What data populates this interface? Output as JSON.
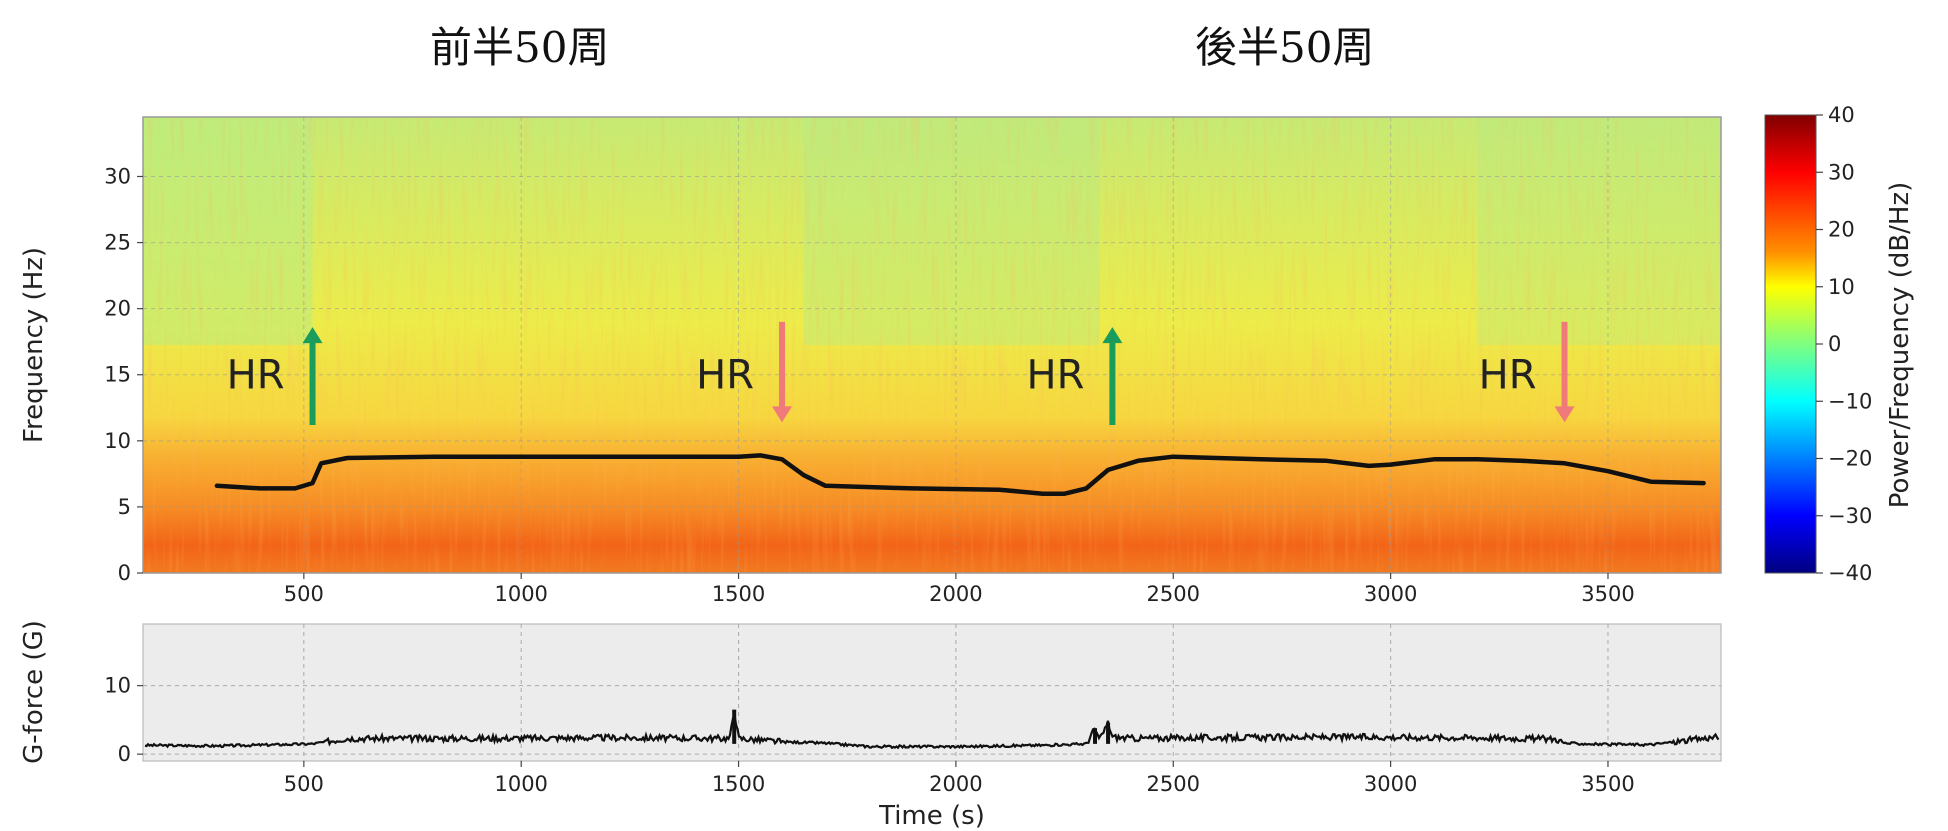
{
  "titles": {
    "left": "前半50周",
    "right": "後半50周"
  },
  "colors": {
    "hr_up": "#1a9c5a",
    "hr_down": "#f07a7a",
    "trace": "#111111",
    "lower_bg": "#ececec"
  },
  "chart_data": [
    {
      "type": "heatmap",
      "title": "",
      "xlabel": "",
      "ylabel": "Frequency (Hz)",
      "xlim": [
        130,
        3760
      ],
      "ylim": [
        0,
        34.5
      ],
      "xticks": [
        500,
        1000,
        1500,
        2000,
        2500,
        3000,
        3500
      ],
      "yticks": [
        0,
        5,
        10,
        15,
        20,
        25,
        30
      ],
      "colorbar": {
        "label": "Power/Frequency (dB/Hz)",
        "range": [
          -40,
          40
        ],
        "ticks": [
          40,
          30,
          20,
          10,
          0,
          -10,
          -20,
          -30,
          -40
        ],
        "colormap": "jet"
      },
      "series": [
        {
          "name": "",
          "x": [
            300,
            400,
            480,
            520,
            540,
            600,
            800,
            1000,
            1200,
            1400,
            1500,
            1550,
            1600,
            1650,
            1700,
            1900,
            2100,
            2200,
            2250,
            2300,
            2350,
            2420,
            2500,
            2700,
            2850,
            2950,
            3000,
            3100,
            3200,
            3300,
            3400,
            3500,
            3600,
            3720
          ],
          "values": [
            6.6,
            6.4,
            6.4,
            6.8,
            8.3,
            8.7,
            8.8,
            8.8,
            8.8,
            8.8,
            8.8,
            8.9,
            8.6,
            7.4,
            6.6,
            6.4,
            6.3,
            6.0,
            6.0,
            6.4,
            7.8,
            8.5,
            8.8,
            8.6,
            8.5,
            8.1,
            8.2,
            8.6,
            8.6,
            8.5,
            8.3,
            7.7,
            6.9,
            6.8
          ]
        }
      ],
      "annotations": [
        {
          "text": "HR",
          "x": 520,
          "direction": "up"
        },
        {
          "text": "HR",
          "x": 1600,
          "direction": "down"
        },
        {
          "text": "HR",
          "x": 2360,
          "direction": "up"
        },
        {
          "text": "HR",
          "x": 3400,
          "direction": "down"
        }
      ]
    },
    {
      "type": "line",
      "title": "",
      "xlabel": "Time (s)",
      "ylabel": "G-force (G)",
      "xlim": [
        130,
        3760
      ],
      "ylim": [
        -1,
        19
      ],
      "xticks": [
        500,
        1000,
        1500,
        2000,
        2500,
        3000,
        3500
      ],
      "yticks": [
        0,
        10
      ],
      "series": [
        {
          "name": "",
          "x": [
            130,
            300,
            520,
            600,
            900,
            1200,
            1480,
            1490,
            1500,
            1600,
            1700,
            1800,
            2000,
            2100,
            2200,
            2300,
            2320,
            2330,
            2350,
            2360,
            2400,
            2600,
            2900,
            3200,
            3380,
            3400,
            3500,
            3600,
            3760
          ],
          "values": [
            1.3,
            1.2,
            1.5,
            2.3,
            2.3,
            2.4,
            2.3,
            6.5,
            2.3,
            1.8,
            1.6,
            1.1,
            1.1,
            1.2,
            1.3,
            1.5,
            3.8,
            2.0,
            4.6,
            2.5,
            2.3,
            2.4,
            2.5,
            2.4,
            2.2,
            1.6,
            1.4,
            1.4,
            2.6
          ]
        }
      ]
    }
  ]
}
